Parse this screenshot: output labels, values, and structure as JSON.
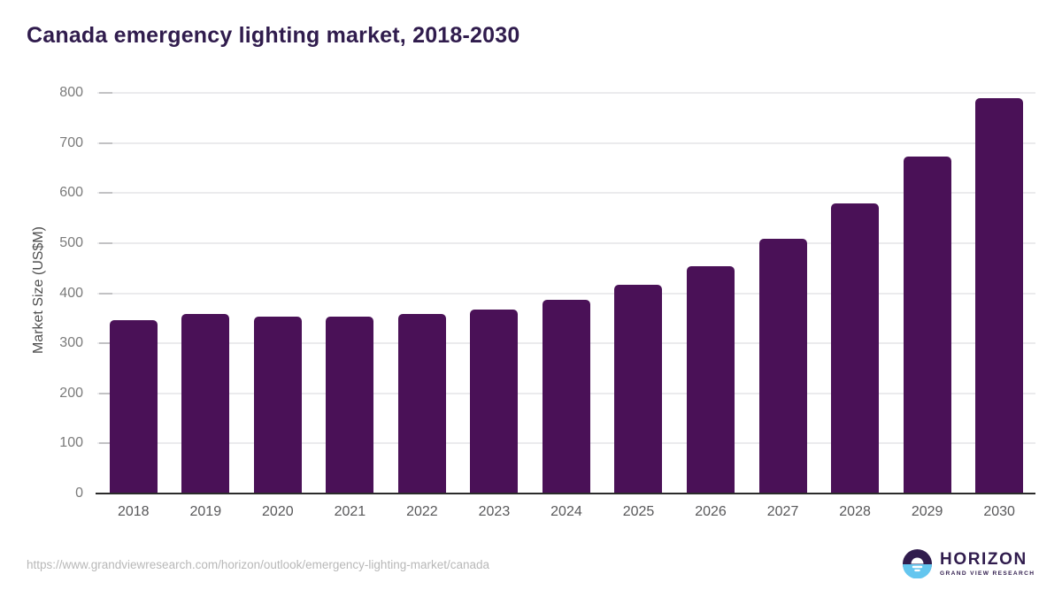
{
  "title": "Canada emergency lighting market, 2018-2030",
  "source_url": "https://www.grandviewresearch.com/horizon/outlook/emergency-lighting-market/canada",
  "logo": {
    "name": "HORIZON",
    "subtitle": "GRAND VIEW RESEARCH"
  },
  "colors": {
    "title": "#301c4d",
    "bar": "#4a1157",
    "gridline": "#ebebed",
    "tick_mark": "#c2c2c4",
    "axis": "#2b2b2b",
    "tick_label": "#7a7a7a",
    "x_label": "#58585a",
    "axis_label": "#4e4e4e",
    "url_text": "#b8b8b8",
    "logo_blue": "#64c6ef"
  },
  "chart_data": {
    "type": "bar",
    "title": "Canada emergency lighting market, 2018-2030",
    "xlabel": "",
    "ylabel": "Market Size (US$M)",
    "categories": [
      "2018",
      "2019",
      "2020",
      "2021",
      "2022",
      "2023",
      "2024",
      "2025",
      "2026",
      "2027",
      "2028",
      "2029",
      "2030"
    ],
    "values": [
      347,
      358,
      353,
      354,
      358,
      368,
      387,
      417,
      454,
      509,
      580,
      673,
      790
    ],
    "ylim": [
      0,
      800
    ],
    "yticks": [
      0,
      100,
      200,
      300,
      400,
      500,
      600,
      700,
      800
    ],
    "grid": true,
    "legend": "none",
    "bar_color": "#4a1157"
  }
}
